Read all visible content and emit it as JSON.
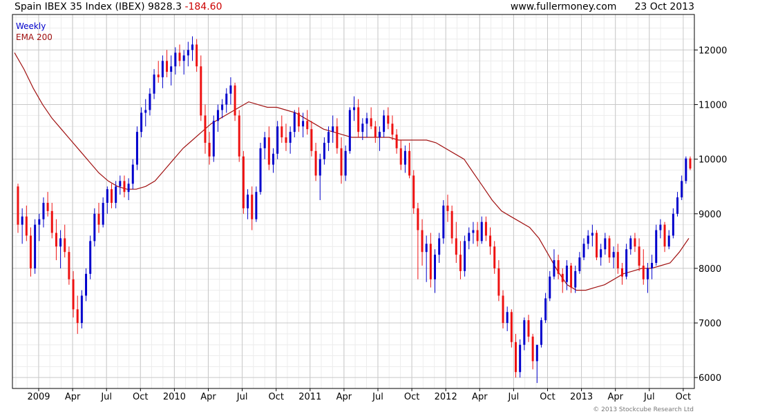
{
  "header": {
    "title": "Spain IBEX 35 Index (IBEX) 9828.3",
    "change": "-184.60",
    "site": "www.fullermoney.com",
    "date": "23 Oct 2013"
  },
  "footer": {
    "copyright": "© 2013 Stockcube Research Ltd"
  },
  "colors": {
    "up": "#0000cc",
    "down": "#ee1111",
    "ema": "#a01010",
    "grid_major": "#c8c8c8",
    "grid_minor": "#ececec"
  },
  "chart_data": {
    "type": "candlestick",
    "title": "Spain IBEX 35 Index (IBEX) 9828.3 -184.60",
    "period": "Weekly",
    "series": [
      {
        "name": "Weekly",
        "kind": "ohlc",
        "color": "#0000cc",
        "values": [
          [
            9500,
            9550,
            8650,
            8800
          ],
          [
            8800,
            9100,
            8450,
            8950
          ],
          [
            8950,
            9150,
            8500,
            8600
          ],
          [
            8600,
            8750,
            7850,
            8000
          ],
          [
            8000,
            8900,
            7900,
            8800
          ],
          [
            8800,
            9000,
            8500,
            8900
          ],
          [
            8900,
            9300,
            8750,
            9200
          ],
          [
            9200,
            9400,
            8950,
            9050
          ],
          [
            9050,
            9200,
            8550,
            8650
          ],
          [
            8650,
            8900,
            8150,
            8400
          ],
          [
            8400,
            8700,
            8000,
            8550
          ],
          [
            8550,
            8800,
            8200,
            8300
          ],
          [
            8300,
            8400,
            7700,
            7800
          ],
          [
            7800,
            7950,
            7100,
            7250
          ],
          [
            7250,
            7500,
            6800,
            7000
          ],
          [
            7000,
            7600,
            6900,
            7500
          ],
          [
            7500,
            8000,
            7400,
            7900
          ],
          [
            7900,
            8600,
            7800,
            8500
          ],
          [
            8500,
            9100,
            8400,
            9000
          ],
          [
            9000,
            9200,
            8650,
            8800
          ],
          [
            8800,
            9300,
            8750,
            9200
          ],
          [
            9200,
            9500,
            9000,
            9450
          ],
          [
            9450,
            9550,
            9100,
            9200
          ],
          [
            9200,
            9600,
            9100,
            9500
          ],
          [
            9500,
            9700,
            9350,
            9600
          ],
          [
            9600,
            9700,
            9300,
            9400
          ],
          [
            9400,
            9650,
            9250,
            9550
          ],
          [
            9550,
            10000,
            9450,
            9900
          ],
          [
            9900,
            10600,
            9800,
            10500
          ],
          [
            10500,
            10950,
            10400,
            10850
          ],
          [
            10850,
            11100,
            10600,
            10900
          ],
          [
            10900,
            11300,
            10800,
            11200
          ],
          [
            11200,
            11650,
            11100,
            11550
          ],
          [
            11550,
            11800,
            11400,
            11500
          ],
          [
            11500,
            11900,
            11300,
            11800
          ],
          [
            11800,
            12000,
            11500,
            11600
          ],
          [
            11600,
            11900,
            11350,
            11700
          ],
          [
            11700,
            12050,
            11550,
            11950
          ],
          [
            11950,
            12100,
            11700,
            11800
          ],
          [
            11800,
            12000,
            11550,
            11900
          ],
          [
            11900,
            12150,
            11700,
            12000
          ],
          [
            12000,
            12250,
            11800,
            12100
          ],
          [
            12100,
            12200,
            11600,
            11700
          ],
          [
            11700,
            11900,
            10700,
            10800
          ],
          [
            10800,
            11000,
            10100,
            10300
          ],
          [
            10300,
            10500,
            9900,
            10050
          ],
          [
            10050,
            10800,
            9950,
            10700
          ],
          [
            10700,
            11000,
            10500,
            10900
          ],
          [
            10900,
            11100,
            10750,
            11000
          ],
          [
            11000,
            11300,
            10850,
            11200
          ],
          [
            11200,
            11500,
            11000,
            11350
          ],
          [
            11350,
            11400,
            10700,
            10800
          ],
          [
            10800,
            10900,
            9950,
            10050
          ],
          [
            10050,
            10150,
            9000,
            9100
          ],
          [
            9100,
            9450,
            8900,
            9350
          ],
          [
            9350,
            9500,
            8700,
            8900
          ],
          [
            8900,
            9500,
            8850,
            9400
          ],
          [
            9400,
            10300,
            9350,
            10200
          ],
          [
            10200,
            10500,
            10000,
            10400
          ],
          [
            10400,
            10600,
            9800,
            9900
          ],
          [
            9900,
            10200,
            9750,
            10100
          ],
          [
            10100,
            10700,
            10000,
            10600
          ],
          [
            10600,
            10800,
            10300,
            10400
          ],
          [
            10400,
            10650,
            10150,
            10300
          ],
          [
            10300,
            10600,
            10100,
            10500
          ],
          [
            10500,
            10900,
            10400,
            10850
          ],
          [
            10850,
            10950,
            10500,
            10600
          ],
          [
            10600,
            10850,
            10400,
            10700
          ],
          [
            10700,
            10900,
            10450,
            10550
          ],
          [
            10550,
            10700,
            10050,
            10150
          ],
          [
            10150,
            10300,
            9600,
            9700
          ],
          [
            9700,
            10100,
            9250,
            10000
          ],
          [
            10000,
            10400,
            9900,
            10300
          ],
          [
            10300,
            10600,
            10150,
            10500
          ],
          [
            10500,
            10800,
            10300,
            10600
          ],
          [
            10600,
            10750,
            10100,
            10200
          ],
          [
            10200,
            10400,
            9550,
            9700
          ],
          [
            9700,
            10250,
            9600,
            10150
          ],
          [
            10150,
            10950,
            10100,
            10900
          ],
          [
            10900,
            11150,
            10700,
            10950
          ],
          [
            10950,
            11100,
            10400,
            10500
          ],
          [
            10500,
            10750,
            10350,
            10650
          ],
          [
            10650,
            10850,
            10400,
            10750
          ],
          [
            10750,
            10950,
            10550,
            10600
          ],
          [
            10600,
            10700,
            10300,
            10400
          ],
          [
            10400,
            10600,
            10150,
            10500
          ],
          [
            10500,
            10900,
            10400,
            10800
          ],
          [
            10800,
            10950,
            10550,
            10650
          ],
          [
            10650,
            10800,
            10350,
            10450
          ],
          [
            10450,
            10550,
            10100,
            10200
          ],
          [
            10200,
            10350,
            9800,
            9900
          ],
          [
            9900,
            10250,
            9750,
            10150
          ],
          [
            10150,
            10300,
            9650,
            9700
          ],
          [
            9700,
            9800,
            9000,
            9100
          ],
          [
            9100,
            9200,
            7800,
            8700
          ],
          [
            8700,
            8900,
            8050,
            8300
          ],
          [
            8300,
            8600,
            7750,
            8450
          ],
          [
            8450,
            8650,
            7650,
            7800
          ],
          [
            7800,
            8350,
            7550,
            8250
          ],
          [
            8250,
            8650,
            8100,
            8550
          ],
          [
            8550,
            9250,
            8450,
            9150
          ],
          [
            9150,
            9350,
            8850,
            9050
          ],
          [
            9050,
            9150,
            8450,
            8550
          ],
          [
            8550,
            8850,
            8100,
            8250
          ],
          [
            8250,
            8500,
            7800,
            7950
          ],
          [
            7950,
            8600,
            7850,
            8500
          ],
          [
            8500,
            8750,
            8350,
            8650
          ],
          [
            8650,
            8850,
            8450,
            8700
          ],
          [
            8700,
            8850,
            8400,
            8500
          ],
          [
            8500,
            8950,
            8450,
            8850
          ],
          [
            8850,
            8950,
            8500,
            8600
          ],
          [
            8600,
            8750,
            8250,
            8400
          ],
          [
            8400,
            8500,
            7900,
            8000
          ],
          [
            8000,
            8150,
            7400,
            7500
          ],
          [
            7500,
            7600,
            6900,
            7000
          ],
          [
            7000,
            7300,
            6850,
            7200
          ],
          [
            7200,
            7250,
            6550,
            6650
          ],
          [
            6650,
            6800,
            6000,
            6100
          ],
          [
            6100,
            6700,
            6000,
            6600
          ],
          [
            6600,
            7100,
            6500,
            7050
          ],
          [
            7050,
            7150,
            6650,
            6750
          ],
          [
            6750,
            6800,
            6150,
            6300
          ],
          [
            6300,
            6400,
            5900,
            6600
          ],
          [
            6600,
            7100,
            6550,
            7050
          ],
          [
            7050,
            7550,
            7000,
            7450
          ],
          [
            7450,
            7950,
            7400,
            7850
          ],
          [
            7850,
            8350,
            7800,
            8150
          ],
          [
            8150,
            8250,
            7800,
            7900
          ],
          [
            7900,
            8000,
            7550,
            7750
          ],
          [
            7750,
            8150,
            7600,
            8050
          ],
          [
            8050,
            8100,
            7550,
            7650
          ],
          [
            7650,
            8050,
            7550,
            7950
          ],
          [
            7950,
            8300,
            7900,
            8200
          ],
          [
            8200,
            8550,
            8150,
            8450
          ],
          [
            8450,
            8700,
            8350,
            8600
          ],
          [
            8600,
            8800,
            8400,
            8650
          ],
          [
            8650,
            8700,
            8150,
            8200
          ],
          [
            8200,
            8450,
            8050,
            8350
          ],
          [
            8350,
            8650,
            8250,
            8550
          ],
          [
            8550,
            8600,
            8100,
            8200
          ],
          [
            8200,
            8400,
            8000,
            8300
          ],
          [
            8300,
            8450,
            7900,
            8000
          ],
          [
            8000,
            8100,
            7700,
            7850
          ],
          [
            7850,
            8450,
            7800,
            8350
          ],
          [
            8350,
            8600,
            8250,
            8550
          ],
          [
            8550,
            8650,
            8300,
            8400
          ],
          [
            8400,
            8550,
            7950,
            8050
          ],
          [
            8050,
            8350,
            7700,
            7800
          ],
          [
            7800,
            8100,
            7550,
            8000
          ],
          [
            8000,
            8250,
            7800,
            8100
          ],
          [
            8100,
            8800,
            8050,
            8700
          ],
          [
            8700,
            8900,
            8550,
            8800
          ],
          [
            8800,
            8850,
            8300,
            8400
          ],
          [
            8400,
            8700,
            8350,
            8600
          ],
          [
            8600,
            9100,
            8550,
            9000
          ],
          [
            9000,
            9400,
            8950,
            9300
          ],
          [
            9300,
            9700,
            9250,
            9600
          ],
          [
            9600,
            10050,
            9550,
            10013
          ],
          [
            10013,
            10050,
            9800,
            9828.3
          ]
        ]
      },
      {
        "name": "EMA 200",
        "kind": "line",
        "color": "#a01010",
        "values": [
          11950,
          11650,
          11300,
          11000,
          10750,
          10550,
          10350,
          10150,
          9950,
          9750,
          9600,
          9500,
          9450,
          9450,
          9500,
          9600,
          9800,
          10000,
          10200,
          10350,
          10500,
          10650,
          10750,
          10850,
          10950,
          11050,
          11000,
          10950,
          10950,
          10900,
          10850,
          10750,
          10650,
          10550,
          10500,
          10450,
          10400,
          10400,
          10400,
          10400,
          10400,
          10350,
          10350,
          10350,
          10350,
          10300,
          10200,
          10100,
          10000,
          9750,
          9500,
          9250,
          9050,
          8950,
          8850,
          8750,
          8550,
          8250,
          7950,
          7700,
          7600,
          7600,
          7650,
          7700,
          7800,
          7900,
          7950,
          8000,
          8000,
          8050,
          8100,
          8300,
          8550
        ]
      }
    ],
    "xlabel": "",
    "ylabel": "",
    "ylim": [
      5800,
      12650
    ],
    "yticks": [
      6000,
      7000,
      8000,
      9000,
      10000,
      11000,
      12000
    ],
    "xticks": [
      "2009",
      "Apr",
      "Jul",
      "Oct",
      "2010",
      "Apr",
      "Jul",
      "Oct",
      "2011",
      "Apr",
      "Jul",
      "Oct",
      "2012",
      "Apr",
      "Jul",
      "Oct",
      "2013",
      "Apr",
      "Jul",
      "Oct"
    ],
    "legend": [
      "Weekly",
      "EMA 200"
    ],
    "legend_position": "top-left",
    "grid": true
  }
}
